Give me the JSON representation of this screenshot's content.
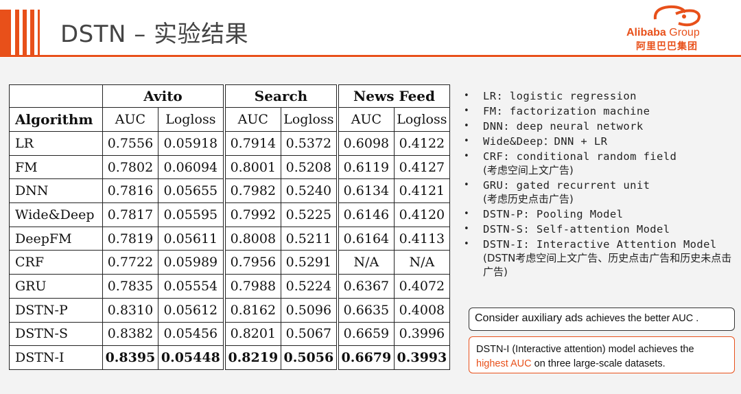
{
  "header": {
    "title": "DSTN – 实验结果",
    "logo_name": "Alibaba",
    "logo_group": "Group",
    "logo_cn": "阿里巴巴集团",
    "accent_color": "#e8501a"
  },
  "table": {
    "groups": [
      "Avito",
      "Search",
      "News Feed"
    ],
    "algorithm_header": "Algorithm",
    "metrics": [
      "AUC",
      "Logloss",
      "AUC",
      "Logloss",
      "AUC",
      "Logloss"
    ],
    "rows": [
      {
        "name": "LR",
        "values": [
          "0.7556",
          "0.05918",
          "0.7914",
          "0.5372",
          "0.6098",
          "0.4122"
        ]
      },
      {
        "name": "FM",
        "values": [
          "0.7802",
          "0.06094",
          "0.8001",
          "0.5208",
          "0.6119",
          "0.4127"
        ]
      },
      {
        "name": "DNN",
        "values": [
          "0.7816",
          "0.05655",
          "0.7982",
          "0.5240",
          "0.6134",
          "0.4121"
        ]
      },
      {
        "name": "Wide&Deep",
        "values": [
          "0.7817",
          "0.05595",
          "0.7992",
          "0.5225",
          "0.6146",
          "0.4120"
        ]
      },
      {
        "name": "DeepFM",
        "values": [
          "0.7819",
          "0.05611",
          "0.8008",
          "0.5211",
          "0.6164",
          "0.4113"
        ]
      },
      {
        "name": "CRF",
        "values": [
          "0.7722",
          "0.05989",
          "0.7956",
          "0.5291",
          "N/A",
          "N/A"
        ]
      },
      {
        "name": "GRU",
        "values": [
          "0.7835",
          "0.05554",
          "0.7988",
          "0.5224",
          "0.6367",
          "0.4072"
        ]
      },
      {
        "name": "DSTN-P",
        "values": [
          "0.8310",
          "0.05612",
          "0.8162",
          "0.5096",
          "0.6635",
          "0.4008"
        ]
      },
      {
        "name": "DSTN-S",
        "values": [
          "0.8382",
          "0.05456",
          "0.8201",
          "0.5067",
          "0.6659",
          "0.3996"
        ]
      },
      {
        "name": "DSTN-I",
        "values": [
          "0.8395",
          "0.05448",
          "0.8219",
          "0.5056",
          "0.6679",
          "0.3993"
        ],
        "best": true
      }
    ]
  },
  "notes": [
    {
      "text": "LR: logistic regression"
    },
    {
      "text": "FM: factorization machine"
    },
    {
      "text": "DNN: deep neural network"
    },
    {
      "text": "Wide&Deep：DNN + LR"
    },
    {
      "text": "CRF: conditional random field",
      "sub": "(考虑空间上文广告)"
    },
    {
      "text": "GRU: gated recurrent unit",
      "sub": "(考虑历史点击广告)"
    },
    {
      "text": "DSTN-P: Pooling Model"
    },
    {
      "text": "DSTN-S: Self-attention Model"
    },
    {
      "text": "DSTN-I: Interactive Attention Model",
      "sub": "(DSTN考虑空间上文广告、历史点击广告和历史未点击广告)"
    }
  ],
  "box1": {
    "prefix": "Consider auxiliary ads ",
    "rest": "achieves the better AUC ."
  },
  "box2": {
    "line1": "DSTN-I (Interactive attention) model achieves the",
    "highlight": "highest AUC",
    "line2_rest": " on three large-scale datasets."
  }
}
